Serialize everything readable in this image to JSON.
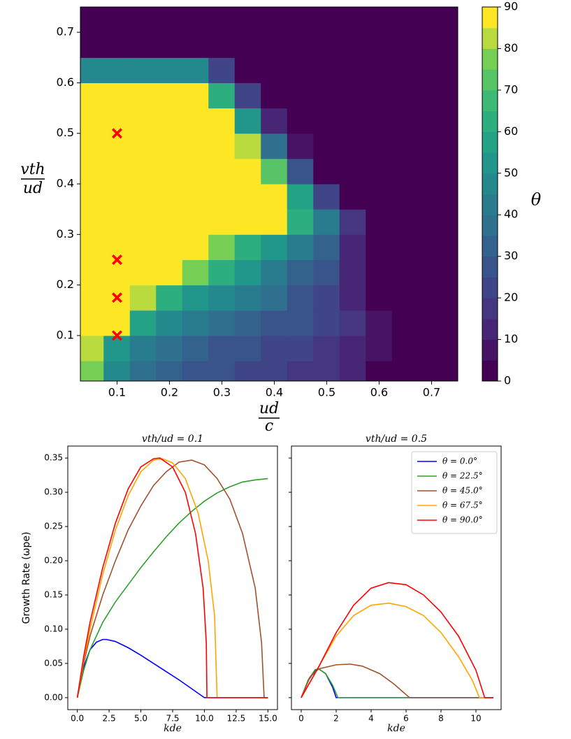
{
  "chart_data": [
    {
      "type": "contour",
      "x": [
        0.05,
        0.1,
        0.15,
        0.2,
        0.25,
        0.3,
        0.35,
        0.4,
        0.45,
        0.5,
        0.55,
        0.6,
        0.65,
        0.7,
        0.75
      ],
      "y": [
        0.025,
        0.075,
        0.125,
        0.175,
        0.225,
        0.275,
        0.325,
        0.375,
        0.425,
        0.475,
        0.525,
        0.575,
        0.625,
        0.675,
        0.725
      ],
      "z": [
        [
          75,
          45,
          38,
          32,
          28,
          26,
          24,
          21,
          19,
          16,
          12,
          3,
          0,
          0,
          0
        ],
        [
          80,
          50,
          40,
          35,
          30,
          28,
          25,
          22,
          20,
          18,
          14,
          5,
          0,
          0,
          0
        ],
        [
          90,
          85,
          55,
          45,
          40,
          35,
          32,
          28,
          25,
          20,
          15,
          5,
          0,
          0,
          0
        ],
        [
          90,
          90,
          80,
          60,
          50,
          45,
          40,
          35,
          28,
          22,
          12,
          2,
          0,
          0,
          0
        ],
        [
          90,
          90,
          90,
          90,
          75,
          60,
          50,
          40,
          32,
          25,
          12,
          0,
          0,
          0,
          0
        ],
        [
          90,
          90,
          90,
          90,
          90,
          75,
          60,
          50,
          40,
          30,
          10,
          0,
          0,
          0,
          0
        ],
        [
          90,
          90,
          90,
          90,
          90,
          90,
          90,
          85,
          60,
          40,
          15,
          0,
          0,
          0,
          0
        ],
        [
          90,
          90,
          90,
          90,
          90,
          90,
          90,
          90,
          55,
          20,
          0,
          0,
          0,
          0,
          0
        ],
        [
          90,
          90,
          90,
          90,
          90,
          90,
          90,
          70,
          25,
          0,
          0,
          0,
          0,
          0,
          0
        ],
        [
          90,
          90,
          90,
          90,
          90,
          90,
          80,
          35,
          5,
          0,
          0,
          0,
          0,
          0,
          0
        ],
        [
          90,
          90,
          90,
          90,
          90,
          90,
          50,
          10,
          0,
          0,
          0,
          0,
          0,
          0,
          0
        ],
        [
          90,
          90,
          90,
          90,
          90,
          60,
          20,
          0,
          0,
          0,
          0,
          0,
          0,
          0,
          0
        ],
        [
          45,
          45,
          45,
          45,
          45,
          20,
          0,
          0,
          0,
          0,
          0,
          0,
          0,
          0,
          0
        ],
        [
          0,
          0,
          0,
          0,
          0,
          0,
          0,
          0,
          0,
          0,
          0,
          0,
          0,
          0,
          0
        ],
        [
          0,
          0,
          0,
          0,
          0,
          0,
          0,
          0,
          0,
          0,
          0,
          0,
          0,
          0,
          0
        ]
      ],
      "levels": [
        0,
        5,
        10,
        15,
        20,
        25,
        30,
        35,
        40,
        45,
        50,
        55,
        60,
        65,
        70,
        75,
        80,
        85,
        90
      ],
      "colorbar_ticks": [
        0,
        10,
        20,
        30,
        40,
        50,
        60,
        70,
        80,
        90
      ],
      "colorbar_label": "θ",
      "xlim": [
        0.03,
        0.75
      ],
      "ylim": [
        0.01,
        0.75
      ],
      "xticks": [
        0.1,
        0.2,
        0.3,
        0.4,
        0.5,
        0.6,
        0.7
      ],
      "yticks": [
        0.1,
        0.2,
        0.3,
        0.4,
        0.5,
        0.6,
        0.7
      ],
      "x_label": {
        "numerator": "ud",
        "denominator": "c"
      },
      "y_label": {
        "numerator": "vth",
        "denominator": "ud"
      },
      "markers": {
        "x": [
          0.1,
          0.1,
          0.1,
          0.1
        ],
        "y": [
          0.5,
          0.25,
          0.175,
          0.1
        ],
        "color": "#ff0000"
      }
    },
    {
      "type": "line",
      "title": "vth/ud = 0.1",
      "x_label": "kde",
      "y_label": "Growth Rate (ωpe)",
      "xlim": [
        -0.75,
        15.75
      ],
      "ylim": [
        -0.0175,
        0.3675
      ],
      "xticks": [
        {
          "value": 0,
          "label": "0.0"
        },
        {
          "value": 2.5,
          "label": "2.5"
        },
        {
          "value": 5,
          "label": "5.0"
        },
        {
          "value": 7.5,
          "label": "7.5"
        },
        {
          "value": 10,
          "label": "10.0"
        },
        {
          "value": 12.5,
          "label": "12.5"
        },
        {
          "value": 15,
          "label": "15.0"
        }
      ],
      "yticks": [
        {
          "value": 0,
          "label": "0.00"
        },
        {
          "value": 0.05,
          "label": "0.05"
        },
        {
          "value": 0.1,
          "label": "0.10"
        },
        {
          "value": 0.15,
          "label": "0.15"
        },
        {
          "value": 0.2,
          "label": "0.20"
        },
        {
          "value": 0.25,
          "label": "0.25"
        },
        {
          "value": 0.3,
          "label": "0.30"
        },
        {
          "value": 0.35,
          "label": "0.35"
        }
      ],
      "series": [
        {
          "color": "#0000ff",
          "x": [
            0,
            0.5,
            1,
            1.5,
            2,
            2.3,
            3,
            4,
            5,
            6,
            7,
            8,
            9,
            10,
            15
          ],
          "values": [
            0,
            0.045,
            0.07,
            0.081,
            0.085,
            0.085,
            0.082,
            0.073,
            0.062,
            0.05,
            0.038,
            0.026,
            0.013,
            0,
            0
          ]
        },
        {
          "color": "#2ca02c",
          "x": [
            0,
            0.5,
            1,
            2,
            3,
            4,
            5,
            6,
            7,
            8,
            9,
            10,
            11,
            12,
            13,
            14,
            15
          ],
          "values": [
            0,
            0.04,
            0.07,
            0.11,
            0.14,
            0.165,
            0.19,
            0.213,
            0.235,
            0.255,
            0.272,
            0.287,
            0.299,
            0.308,
            0.315,
            0.318,
            0.32
          ]
        },
        {
          "color": "#a0522d",
          "x": [
            0,
            0.5,
            1,
            2,
            3,
            4,
            5,
            6,
            7,
            8,
            9,
            10,
            11,
            12,
            13,
            14,
            14.5,
            14.7,
            15
          ],
          "values": [
            0,
            0.05,
            0.09,
            0.15,
            0.2,
            0.245,
            0.28,
            0.31,
            0.33,
            0.344,
            0.347,
            0.34,
            0.32,
            0.29,
            0.24,
            0.16,
            0.08,
            0,
            0
          ]
        },
        {
          "color": "#ffa500",
          "x": [
            0,
            0.5,
            1,
            2,
            3,
            4,
            5,
            6,
            6.7,
            7.5,
            8.5,
            9.5,
            10.3,
            10.8,
            11,
            15
          ],
          "values": [
            0,
            0.055,
            0.1,
            0.18,
            0.245,
            0.295,
            0.33,
            0.347,
            0.349,
            0.343,
            0.32,
            0.27,
            0.2,
            0.12,
            0,
            0
          ]
        },
        {
          "color": "#ff0000",
          "x": [
            0,
            0.5,
            1,
            2,
            3,
            4,
            5,
            6,
            6.5,
            7.5,
            8.5,
            9.3,
            9.9,
            10.15,
            10.2,
            15
          ],
          "values": [
            0,
            0.06,
            0.11,
            0.19,
            0.255,
            0.305,
            0.337,
            0.349,
            0.35,
            0.337,
            0.3,
            0.24,
            0.16,
            0.08,
            0,
            0
          ]
        }
      ]
    },
    {
      "type": "line",
      "title": "vth/ud = 0.5",
      "x_label": "kde",
      "xlim": [
        -0.56,
        11.44
      ],
      "ylim": [
        -0.0175,
        0.3675
      ],
      "xticks": [
        0,
        2,
        4,
        6,
        8,
        10
      ],
      "yticks": [
        0,
        0.05,
        0.1,
        0.15,
        0.2,
        0.25,
        0.3,
        0.35
      ],
      "legend": "upper right",
      "series": [
        {
          "name": "θ = 0.0°",
          "color": "#0000ff",
          "x": [
            0,
            0.4,
            0.8,
            1,
            1.4,
            1.8,
            2,
            11
          ],
          "values": [
            0,
            0.025,
            0.04,
            0.042,
            0.035,
            0.015,
            0,
            0
          ]
        },
        {
          "name": "θ = 22.5°",
          "color": "#2ca02c",
          "x": [
            0,
            0.4,
            0.8,
            1,
            1.4,
            1.8,
            2.1,
            11
          ],
          "values": [
            0,
            0.026,
            0.041,
            0.042,
            0.035,
            0.018,
            0,
            0
          ]
        },
        {
          "name": "θ = 45.0°",
          "color": "#a0522d",
          "x": [
            0,
            0.5,
            1,
            2,
            2.8,
            3.5,
            4.5,
            5.3,
            6.2,
            11
          ],
          "values": [
            0,
            0.03,
            0.042,
            0.048,
            0.049,
            0.046,
            0.035,
            0.02,
            0,
            0
          ]
        },
        {
          "name": "θ = 67.5°",
          "color": "#ffa500",
          "x": [
            0,
            1,
            2,
            3,
            4,
            5,
            6,
            7,
            8,
            9,
            9.8,
            10.2,
            11
          ],
          "values": [
            0,
            0.045,
            0.09,
            0.12,
            0.135,
            0.138,
            0.133,
            0.12,
            0.095,
            0.06,
            0.025,
            0,
            0
          ]
        },
        {
          "name": "θ = 90.0°",
          "color": "#ff0000",
          "x": [
            0,
            1,
            2,
            3,
            4,
            5,
            6,
            7,
            8,
            9,
            10,
            10.5,
            11
          ],
          "values": [
            0,
            0.045,
            0.095,
            0.135,
            0.16,
            0.168,
            0.165,
            0.15,
            0.125,
            0.09,
            0.04,
            0,
            0
          ]
        }
      ]
    }
  ]
}
